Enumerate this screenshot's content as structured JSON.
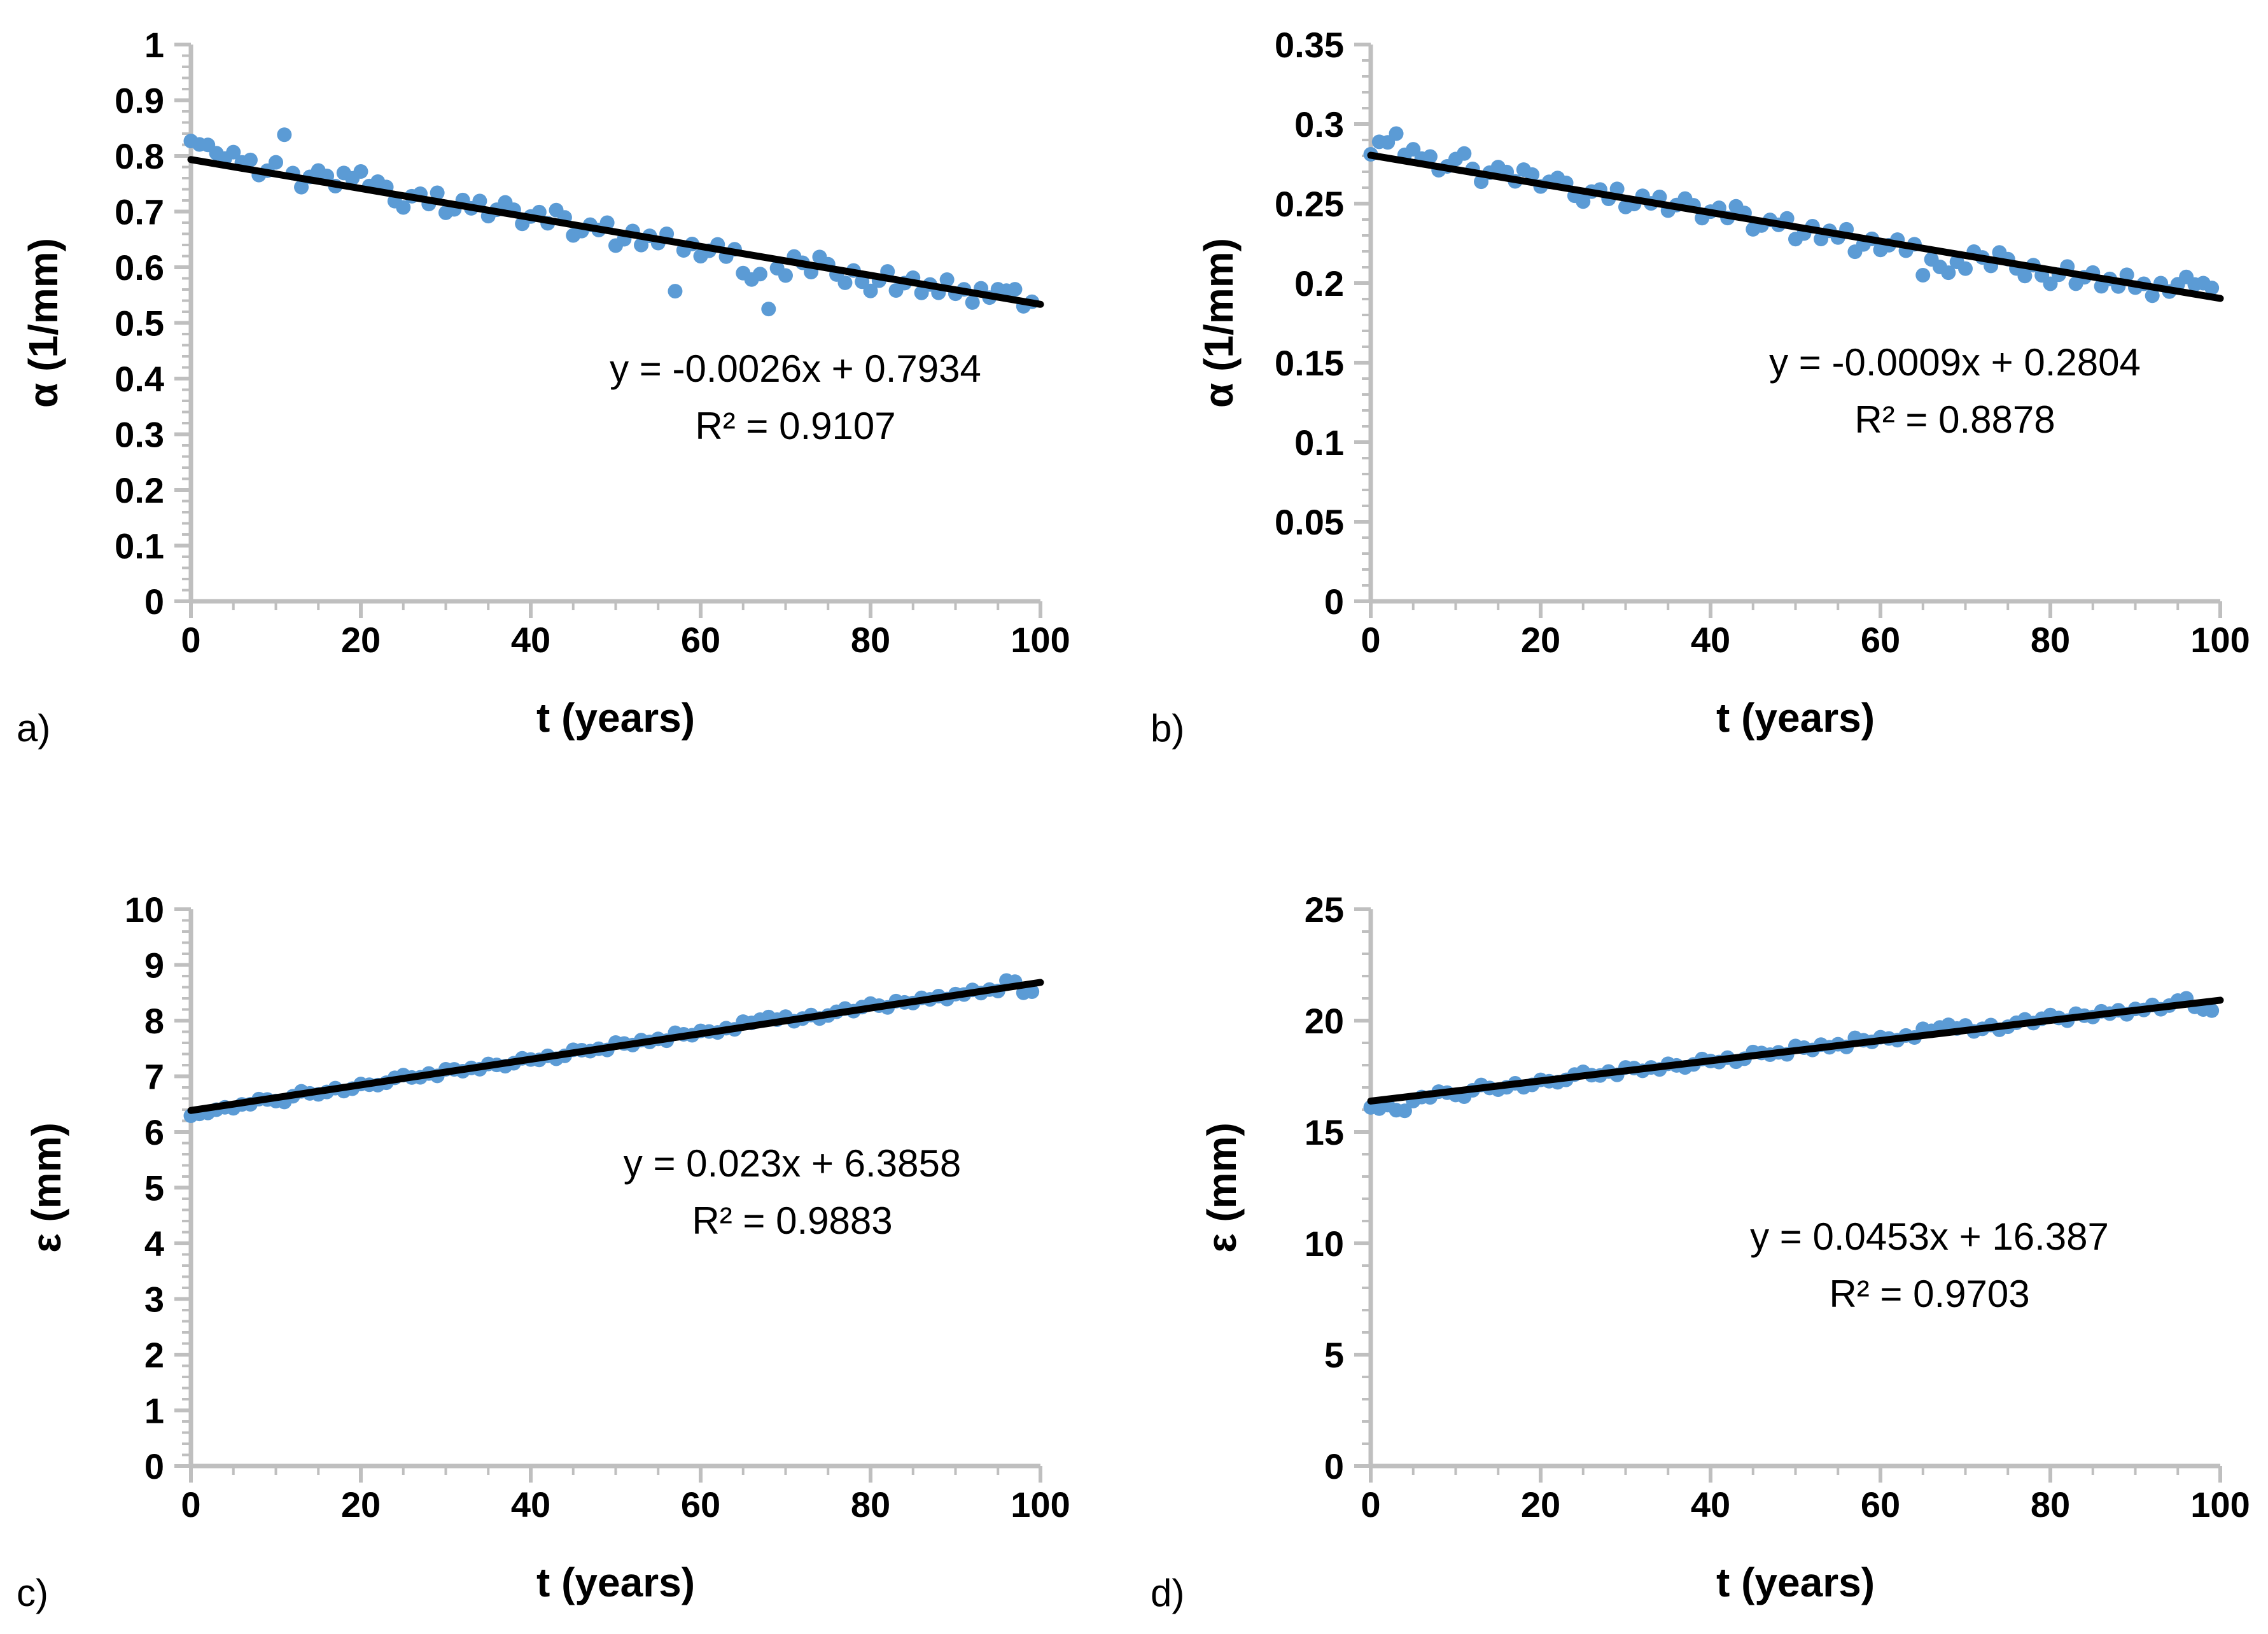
{
  "styles": {
    "background": "#ffffff",
    "point_color": "#5B9BD5",
    "trendline_color": "#000000",
    "axis_color": "#BFBFBF",
    "text_color": "#000000"
  },
  "noise": [
    0.95,
    0.85,
    0.9,
    0.55,
    0.35,
    0.75,
    0.3,
    0.5,
    -0.2,
    0.1,
    0.6,
    1.0,
    0.2,
    -0.45,
    0.15,
    0.55,
    0.35,
    -0.1,
    0.65,
    0.45,
    -0.15,
    0.2,
    0.5,
    0.3,
    -0.35,
    -0.6,
    0.05,
    0.25,
    -0.2,
    0.45,
    -0.5,
    -0.25,
    0.3,
    -0.05,
    0.4,
    -0.3,
    0.1,
    0.55,
    0.25,
    -0.4,
    0.05,
    0.35,
    -0.15,
    0.6,
    0.3,
    -0.55,
    -0.25,
    0.15,
    -0.05,
    0.4,
    -0.7,
    -0.3,
    0.2,
    -0.45,
    0.1,
    -0.2,
    0.35,
    -0.85,
    -0.35,
    0.05,
    -0.5,
    -0.15,
    0.25,
    -0.3,
    0.15,
    -1.0,
    -0.55,
    -0.9,
    -1.15,
    -0.45,
    -0.75,
    0.3,
    0.05,
    -0.35,
    0.5,
    0.2,
    -0.25,
    -0.6,
    0.1,
    -0.4,
    -0.8,
    -0.2,
    0.35,
    -0.55,
    -0.1,
    0.25,
    -0.45,
    0.05,
    -0.3,
    0.45,
    -0.2,
    0.1,
    -0.5,
    0.3,
    -0.1,
    0.4,
    0.9,
    0.55,
    -0.25,
    -0.6
  ],
  "chart_data": [
    {
      "id": "a",
      "type": "scatter",
      "panel_label": "a)",
      "xlabel": "t (years)",
      "ylabel": "α (1/mm)",
      "xlim": [
        0,
        100
      ],
      "ylim": [
        0,
        1
      ],
      "x_major": 20,
      "x_minor": 5,
      "y_major": 0.1,
      "y_minor": 0.02,
      "n_points": 100,
      "trend": {
        "slope": -0.0026,
        "intercept": 0.7934,
        "r2": 0.9107
      },
      "equation_label": "y = -0.0026x + 0.7934",
      "r2_label": "R² = 0.9107",
      "noise_amp": 0.035,
      "noise_sign": 1,
      "overrides": {
        "11": 0.838,
        "20": 0.772,
        "57": 0.557,
        "66": 0.578,
        "68": 0.525,
        "96": 0.558,
        "99": 0.538
      },
      "grid": false,
      "legend": false
    },
    {
      "id": "b",
      "type": "scatter",
      "panel_label": "b)",
      "xlabel": "t (years)",
      "ylabel": "α (1/mm)",
      "xlim": [
        0,
        100
      ],
      "ylim": [
        0,
        0.35
      ],
      "x_major": 20,
      "x_minor": 5,
      "y_major": 0.05,
      "y_minor": 0.01,
      "n_points": 100,
      "trend": {
        "slope": -0.0009,
        "intercept": 0.2804,
        "r2": 0.8878
      },
      "equation_label": "y = -0.0009x + 0.2804",
      "r2_label": "R² = 0.8878",
      "noise_amp": 0.011,
      "noise_sign": 1,
      "overrides": {
        "0": 0.281,
        "3": 0.294,
        "65": 0.205,
        "98": 0.2,
        "99": 0.197
      },
      "grid": false,
      "legend": false
    },
    {
      "id": "c",
      "type": "scatter",
      "panel_label": "c)",
      "xlabel": "t (years)",
      "ylabel": "ε (mm)",
      "xlim": [
        0,
        100
      ],
      "ylim": [
        0,
        10
      ],
      "x_major": 20,
      "x_minor": 5,
      "y_major": 1,
      "y_minor": 0.2,
      "n_points": 100,
      "trend": {
        "slope": 0.023,
        "intercept": 6.3858,
        "r2": 0.9883
      },
      "equation_label": "y = 0.023x + 6.3858",
      "r2_label": "R² = 0.9883",
      "noise_amp": 0.1,
      "noise_sign": -1,
      "overrides": {
        "96": 8.72,
        "97": 8.7,
        "98": 8.5,
        "99": 8.52
      },
      "grid": false,
      "legend": false
    },
    {
      "id": "d",
      "type": "scatter",
      "panel_label": "d)",
      "xlabel": "t (years)",
      "ylabel": "ε (mm)",
      "xlim": [
        0,
        100
      ],
      "ylim": [
        0,
        25
      ],
      "x_major": 20,
      "x_minor": 5,
      "y_major": 5,
      "y_minor": 1,
      "n_points": 100,
      "trend": {
        "slope": 0.0453,
        "intercept": 16.387,
        "r2": 0.9703
      },
      "equation_label": "y = 0.0453x + 16.387",
      "r2_label": "R² = 0.9703",
      "noise_amp": 0.3,
      "noise_sign": -1,
      "overrides": {
        "1": 16.05,
        "3": 15.98,
        "4": 15.95,
        "95": 20.9,
        "96": 21.0,
        "98": 20.5,
        "99": 20.45
      },
      "grid": false,
      "legend": false
    }
  ]
}
